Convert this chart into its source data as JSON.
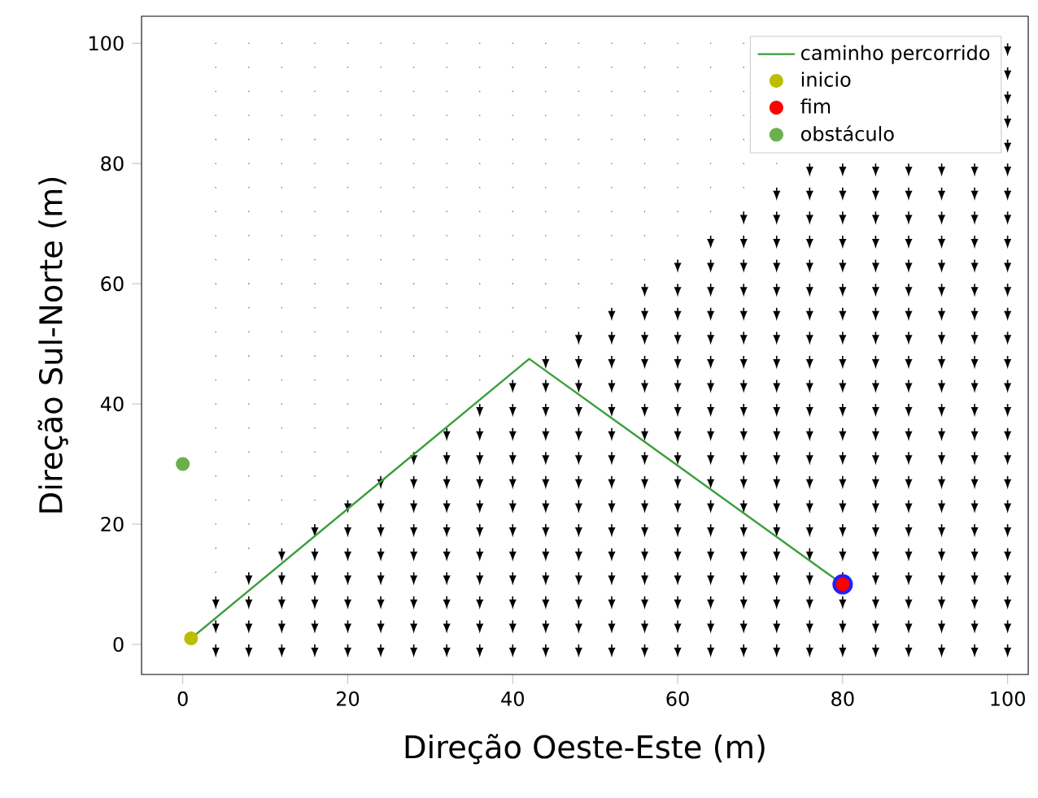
{
  "chart_data": {
    "type": "line",
    "xlabel": "Direção Oeste-Este (m)",
    "ylabel": "Direção Sul-Norte (m)",
    "xlim": [
      -5,
      102.5
    ],
    "ylim": [
      -5,
      104.5
    ],
    "xticks": [
      0,
      20,
      40,
      60,
      80,
      100
    ],
    "yticks": [
      0,
      20,
      40,
      60,
      80,
      100
    ],
    "legend": "top right",
    "series": [
      {
        "name": "caminho percorrido",
        "type": "line",
        "color": "#3c9e3c",
        "x": [
          1,
          42,
          80
        ],
        "values": [
          1,
          47.5,
          10
        ],
        "marker": "none"
      },
      {
        "name": "inicio",
        "type": "scatter",
        "color": "#bcbd00",
        "x": [
          1
        ],
        "values": [
          1
        ],
        "marker": "circle"
      },
      {
        "type": "scatter",
        "color": "#1f1fff",
        "x": [
          80
        ],
        "values": [
          10
        ],
        "marker": "circle"
      },
      {
        "name": "fim",
        "type": "scatter",
        "color": "#ff0000",
        "x": [
          80
        ],
        "values": [
          10
        ],
        "marker": "circle"
      },
      {
        "name": "obstáculo",
        "type": "scatter",
        "color": "#6ab04c",
        "x": [
          0
        ],
        "values": [
          30
        ],
        "marker": "circle"
      }
    ]
  }
}
